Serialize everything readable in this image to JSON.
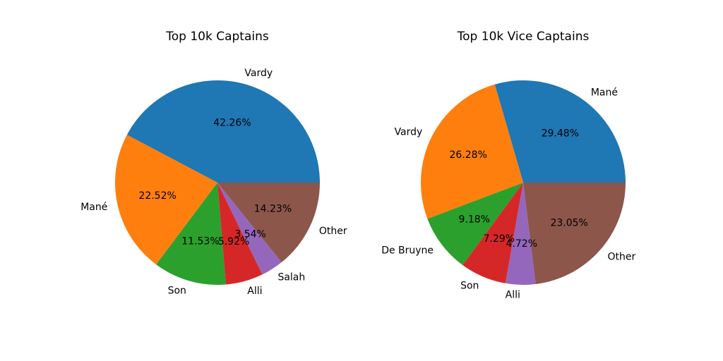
{
  "chart_data": [
    {
      "type": "pie",
      "title": "Top 10k Captains",
      "categories": [
        "Vardy",
        "Mané",
        "Son",
        "Alli",
        "Salah",
        "Other"
      ],
      "values": [
        42.26,
        22.52,
        11.53,
        5.92,
        3.54,
        14.23
      ],
      "value_labels": [
        "42.26%",
        "22.52%",
        "11.53%",
        "5.92%",
        "3.54%",
        "14.23%"
      ],
      "colors": [
        "#1f77b4",
        "#ff7f0e",
        "#2ca02c",
        "#d62728",
        "#9467bd",
        "#8c564b"
      ],
      "start_angle": 0,
      "direction": "counterclockwise"
    },
    {
      "type": "pie",
      "title": "Top 10k Vice Captains",
      "categories": [
        "Mané",
        "Vardy",
        "De Bruyne",
        "Son",
        "Alli",
        "Other"
      ],
      "values": [
        29.48,
        26.28,
        9.18,
        7.29,
        4.72,
        23.05
      ],
      "value_labels": [
        "29.48%",
        "26.28%",
        "9.18%",
        "7.29%",
        "4.72%",
        "23.05%"
      ],
      "colors": [
        "#1f77b4",
        "#ff7f0e",
        "#2ca02c",
        "#d62728",
        "#9467bd",
        "#8c564b"
      ],
      "start_angle": 0,
      "direction": "counterclockwise"
    }
  ]
}
